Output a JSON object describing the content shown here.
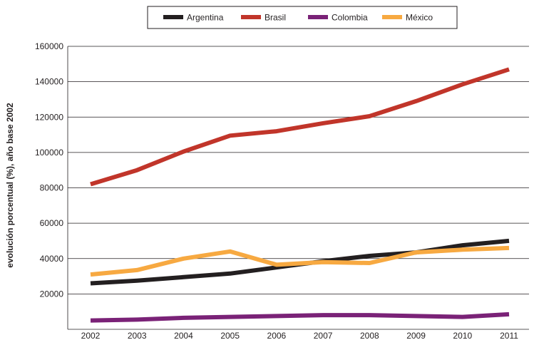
{
  "chart_data": {
    "type": "line",
    "x": [
      "2002",
      "2003",
      "2004",
      "2005",
      "2006",
      "2007",
      "2008",
      "2009",
      "2010",
      "2011"
    ],
    "series": [
      {
        "name": "Argentina",
        "color": "#231f20",
        "values": [
          26000,
          27500,
          29500,
          31500,
          35000,
          38500,
          41500,
          43500,
          47500,
          50000
        ]
      },
      {
        "name": "Brasil",
        "color": "#c1352a",
        "values": [
          82000,
          90000,
          100500,
          109500,
          112000,
          116500,
          120500,
          129000,
          138500,
          147000
        ]
      },
      {
        "name": "Colombia",
        "color": "#7a2277",
        "values": [
          5000,
          5500,
          6500,
          7000,
          7500,
          8000,
          8000,
          7500,
          7000,
          8500
        ]
      },
      {
        "name": "México",
        "color": "#f7a941",
        "values": [
          31000,
          33500,
          40000,
          44000,
          36500,
          38000,
          37500,
          43500,
          45000,
          46000
        ]
      }
    ],
    "ylabel": "evolución porcentual (%), año base 2002",
    "xlabel": "",
    "yticks": [
      "20000",
      "40000",
      "60000",
      "80000",
      "100000",
      "120000",
      "140000",
      "160000"
    ],
    "ylim": [
      0,
      160000
    ],
    "grid": true,
    "legend": "top-center"
  }
}
